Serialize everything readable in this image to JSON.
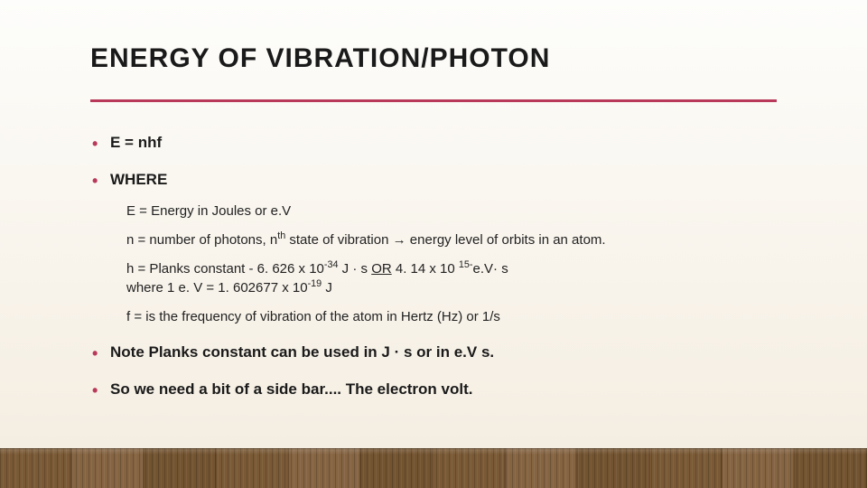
{
  "colors": {
    "accent": "#b8395a",
    "text": "#1a1a1a",
    "bg_top": "#fdfdfb",
    "bg_bottom": "#f3ece0",
    "floor_base": "#7a5a36",
    "floor_dark": "#6a4c2c"
  },
  "title": "ENERGY OF VIBRATION/PHOTON",
  "bullets": {
    "b1": "E = nhf",
    "b2": "WHERE",
    "sub": {
      "s1": "E = Energy in Joules or e.V",
      "s2_a": "n = number of photons, n",
      "s2_sup": "th",
      "s2_b": " state of vibration ",
      "s2_arrow": "→",
      "s2_c": " energy level of orbits in an atom.",
      "s3_a": "h = Planks constant - 6. 626 x 10",
      "s3_sup1": "-34",
      "s3_b": " J ",
      "s3_dot1": "·",
      "s3_c": " s  ",
      "s3_or": "OR",
      "s3_d": "  4. 14 x 10 ",
      "s3_sup2": "15-",
      "s3_e": "e.V",
      "s3_dot2": "·",
      "s3_f": " s",
      "s3_line2_a": "where 1 e. V = 1. 602677 x 10",
      "s3_line2_sup": "-19",
      "s3_line2_b": " J",
      "s4": "f = is the frequency of vibration of the atom in Hertz (Hz) or 1/s"
    },
    "b3_a": "Note Planks constant can be used in J ",
    "b3_dot": "·",
    "b3_b": " s or in e.V s.",
    "b4": "So we need a bit of a side bar.... The electron volt."
  }
}
